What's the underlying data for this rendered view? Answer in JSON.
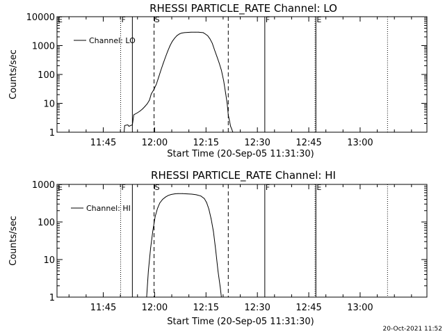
{
  "chart_data": [
    {
      "type": "line",
      "title": "RHESSI PARTICLE_RATE Channel: LO",
      "xlabel": "Start Time (20-Sep-05 11:31:30)",
      "ylabel": "Counts/sec",
      "y_scale": "log",
      "ylim": [
        1,
        10000
      ],
      "y_tick_labels": [
        "1",
        "10",
        "100",
        "1000",
        "10000"
      ],
      "xlim": [
        0,
        6480
      ],
      "x_ticks": [
        {
          "t": 810,
          "label": "11:45"
        },
        {
          "t": 1710,
          "label": "12:00"
        },
        {
          "t": 2610,
          "label": "12:15"
        },
        {
          "t": 3510,
          "label": "12:30"
        },
        {
          "t": 4410,
          "label": "12:45"
        },
        {
          "t": 5310,
          "label": "13:00"
        }
      ],
      "legend": {
        "position": "top-left",
        "entries": [
          "Channel: LO"
        ]
      },
      "markers": [
        {
          "t": 1115,
          "style": "dotted",
          "label": "F"
        },
        {
          "t": 1320,
          "style": "solid",
          "label": ""
        },
        {
          "t": 1700,
          "style": "dashed",
          "label": "S"
        },
        {
          "t": 3000,
          "style": "dashed",
          "label": ""
        },
        {
          "t": 3640,
          "style": "solid",
          "label": "F"
        },
        {
          "t": 4520,
          "style": "dotted",
          "label": ""
        },
        {
          "t": 4535,
          "style": "solid",
          "label": "E"
        },
        {
          "t": 5790,
          "style": "dotted",
          "label": ""
        }
      ],
      "corner_label": "E",
      "series": [
        {
          "name": "Channel: LO",
          "x": [
            1175,
            1185,
            1240,
            1260,
            1290,
            1320,
            1345,
            1400,
            1450,
            1500,
            1540,
            1580,
            1620,
            1650,
            1700,
            1740,
            1780,
            1820,
            1860,
            1900,
            1940,
            1980,
            2020,
            2060,
            2100,
            2140,
            2180,
            2230,
            2280,
            2350,
            2420,
            2480,
            2520,
            2560,
            2600,
            2640,
            2680,
            2720,
            2760,
            2800,
            2840,
            2880,
            2920,
            2950,
            2980,
            3000,
            3020,
            3040,
            3060,
            3080
          ],
          "y": [
            1,
            1.7,
            1.8,
            1.6,
            1.7,
            1.8,
            4,
            4.6,
            5.3,
            6.4,
            7.8,
            9.6,
            13,
            21,
            31,
            46,
            79,
            140,
            240,
            400,
            650,
            1000,
            1400,
            1800,
            2200,
            2500,
            2700,
            2800,
            2850,
            2900,
            2900,
            2900,
            2850,
            2800,
            2500,
            2200,
            1700,
            1200,
            700,
            420,
            250,
            140,
            60,
            25,
            10,
            4,
            2.6,
            1.6,
            1.3,
            1
          ]
        }
      ]
    },
    {
      "type": "line",
      "title": "RHESSI PARTICLE_RATE Channel: HI",
      "xlabel": "Start Time (20-Sep-05 11:31:30)",
      "ylabel": "Counts/sec",
      "y_scale": "log",
      "ylim": [
        1,
        1000
      ],
      "y_tick_labels": [
        "1",
        "10",
        "100",
        "1000"
      ],
      "xlim": [
        0,
        6480
      ],
      "x_ticks": [
        {
          "t": 810,
          "label": "11:45"
        },
        {
          "t": 1710,
          "label": "12:00"
        },
        {
          "t": 2610,
          "label": "12:15"
        },
        {
          "t": 3510,
          "label": "12:30"
        },
        {
          "t": 4410,
          "label": "12:45"
        },
        {
          "t": 5310,
          "label": "13:00"
        }
      ],
      "legend": {
        "position": "top-left",
        "entries": [
          "Channel: HI"
        ]
      },
      "markers": [
        {
          "t": 1115,
          "style": "dotted",
          "label": "F"
        },
        {
          "t": 1320,
          "style": "solid",
          "label": ""
        },
        {
          "t": 1700,
          "style": "dashed",
          "label": "S"
        },
        {
          "t": 3000,
          "style": "dashed",
          "label": ""
        },
        {
          "t": 3640,
          "style": "solid",
          "label": "F"
        },
        {
          "t": 4520,
          "style": "dotted",
          "label": ""
        },
        {
          "t": 4535,
          "style": "solid",
          "label": "E"
        },
        {
          "t": 5790,
          "style": "dotted",
          "label": ""
        }
      ],
      "corner_label": "E",
      "series": [
        {
          "name": "Channel: HI",
          "x": [
            1570,
            1600,
            1640,
            1680,
            1720,
            1760,
            1800,
            1850,
            1900,
            1950,
            2000,
            2060,
            2120,
            2200,
            2280,
            2360,
            2440,
            2520,
            2580,
            2620,
            2660,
            2700,
            2740,
            2780,
            2820,
            2860,
            2880
          ],
          "y": [
            1,
            5,
            20,
            60,
            140,
            230,
            320,
            400,
            460,
            510,
            540,
            560,
            570,
            570,
            560,
            550,
            530,
            490,
            420,
            330,
            220,
            120,
            55,
            18,
            5,
            1.8,
            1
          ]
        }
      ]
    }
  ],
  "footer": {
    "timestamp": "20-Oct-2021 11:52"
  }
}
